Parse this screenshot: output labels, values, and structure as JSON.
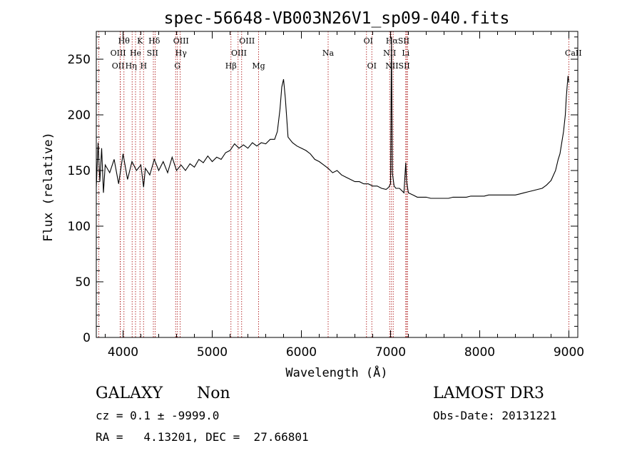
{
  "chart_data": {
    "type": "line",
    "title": "spec-56648-VB003N26V1_sp09-040.fits",
    "xlabel": "Wavelength (Å)",
    "ylabel": "Flux (relative)",
    "xlim": [
      3700,
      9100
    ],
    "ylim": [
      0,
      275
    ],
    "xticks": [
      4000,
      5000,
      6000,
      7000,
      8000,
      9000
    ],
    "yticks": [
      0,
      50,
      100,
      150,
      200,
      250
    ],
    "grid": false,
    "series": [
      {
        "name": "spectrum",
        "x": [
          3700,
          3720,
          3740,
          3760,
          3780,
          3800,
          3850,
          3900,
          3950,
          4000,
          4050,
          4100,
          4150,
          4200,
          4230,
          4250,
          4300,
          4350,
          4400,
          4450,
          4500,
          4550,
          4600,
          4650,
          4700,
          4750,
          4800,
          4850,
          4900,
          4950,
          5000,
          5050,
          5100,
          5150,
          5200,
          5250,
          5300,
          5350,
          5400,
          5450,
          5500,
          5550,
          5600,
          5650,
          5700,
          5730,
          5760,
          5780,
          5800,
          5820,
          5850,
          5900,
          5950,
          6000,
          6050,
          6100,
          6150,
          6200,
          6250,
          6300,
          6350,
          6400,
          6450,
          6500,
          6550,
          6600,
          6650,
          6700,
          6750,
          6800,
          6850,
          6900,
          6950,
          6980,
          7000,
          7010,
          7020,
          7040,
          7060,
          7100,
          7150,
          7170,
          7180,
          7200,
          7250,
          7300,
          7350,
          7400,
          7450,
          7500,
          7550,
          7600,
          7650,
          7700,
          7750,
          7800,
          7850,
          7900,
          7950,
          8000,
          8050,
          8100,
          8150,
          8200,
          8250,
          8300,
          8350,
          8400,
          8450,
          8500,
          8550,
          8600,
          8650,
          8700,
          8750,
          8800,
          8850,
          8880,
          8900,
          8920,
          8940,
          8960,
          8970,
          8980,
          8990,
          9000
        ],
        "y": [
          135,
          175,
          140,
          170,
          130,
          155,
          148,
          160,
          138,
          165,
          142,
          158,
          150,
          155,
          135,
          152,
          146,
          160,
          150,
          158,
          148,
          162,
          150,
          155,
          150,
          156,
          153,
          160,
          157,
          163,
          158,
          162,
          160,
          166,
          168,
          174,
          170,
          173,
          170,
          175,
          172,
          175,
          174,
          178,
          178,
          185,
          205,
          225,
          232,
          215,
          180,
          175,
          172,
          170,
          168,
          165,
          160,
          158,
          155,
          152,
          148,
          150,
          146,
          144,
          142,
          140,
          140,
          138,
          138,
          136,
          136,
          134,
          133,
          135,
          138,
          270,
          148,
          136,
          134,
          134,
          130,
          157,
          140,
          130,
          128,
          126,
          126,
          126,
          125,
          125,
          125,
          125,
          125,
          126,
          126,
          126,
          126,
          127,
          127,
          127,
          127,
          128,
          128,
          128,
          128,
          128,
          128,
          128,
          129,
          130,
          131,
          132,
          133,
          134,
          137,
          141,
          150,
          160,
          165,
          175,
          185,
          200,
          215,
          225,
          235,
          229
        ],
        "color": "#000000"
      }
    ],
    "lines": [
      {
        "name": "line-OII",
        "x": 3727,
        "label": "OII"
      },
      {
        "name": "line-OIII",
        "x": 3968,
        "label": "OIII"
      },
      {
        "name": "line-Hepsilon",
        "x": 3970,
        "label": "Hε"
      },
      {
        "name": "line-Htheta",
        "x": 4010,
        "label": "Hθ"
      },
      {
        "name": "line-Heta",
        "x": 4102,
        "label": "Hη"
      },
      {
        "name": "line-He",
        "x": 4140,
        "label": "He"
      },
      {
        "name": "line-K",
        "x": 4190,
        "label": "K"
      },
      {
        "name": "line-H",
        "x": 4230,
        "label": "H"
      },
      {
        "name": "line-Hdelta",
        "x": 4340,
        "label": "Hδ"
      },
      {
        "name": "line-SII-a",
        "x": 4360,
        "label": "SII"
      },
      {
        "name": "line-OIII-a",
        "x": 4590,
        "label": "OIII"
      },
      {
        "name": "line-Hgamma",
        "x": 4610,
        "label": "Hγ"
      },
      {
        "name": "line-G",
        "x": 4640,
        "label": "G"
      },
      {
        "name": "line-Hbeta",
        "x": 5210,
        "label": "Hβ"
      },
      {
        "name": "line-OIII-b",
        "x": 5290,
        "label": "OIII"
      },
      {
        "name": "line-OIII-c",
        "x": 5330,
        "label": "OIII"
      },
      {
        "name": "line-Mg",
        "x": 5520,
        "label": "Mg"
      },
      {
        "name": "line-Na",
        "x": 6300,
        "label": "Na"
      },
      {
        "name": "line-OI-a",
        "x": 6730,
        "label": "OI"
      },
      {
        "name": "line-OI-b",
        "x": 6790,
        "label": "OI"
      },
      {
        "name": "line-NII-a",
        "x": 6990,
        "label": "NII"
      },
      {
        "name": "line-Halpha",
        "x": 7010,
        "label": "Hα"
      },
      {
        "name": "line-NII-b",
        "x": 7030,
        "label": "NII"
      },
      {
        "name": "line-SII-b",
        "x": 7170,
        "label": "SII"
      },
      {
        "name": "line-Li",
        "x": 7180,
        "label": "Li"
      },
      {
        "name": "line-SII-c",
        "x": 7190,
        "label": "SII"
      },
      {
        "name": "line-CaII",
        "x": 9000,
        "label": "CaII"
      }
    ],
    "line_label_rows": [
      {
        "text": "Hθ",
        "x": 4010,
        "row": 0
      },
      {
        "text": "K",
        "x": 4190,
        "row": 0
      },
      {
        "text": "Hδ",
        "x": 4350,
        "row": 0
      },
      {
        "text": "OIII",
        "x": 4650,
        "row": 0
      },
      {
        "text": "OIII",
        "x": 5390,
        "row": 0
      },
      {
        "text": "OI",
        "x": 6750,
        "row": 0
      },
      {
        "text": "HαSII",
        "x": 7080,
        "row": 0
      },
      {
        "text": "OIII",
        "x": 3945,
        "row": 1
      },
      {
        "text": "He",
        "x": 4140,
        "row": 1
      },
      {
        "text": "SII",
        "x": 4330,
        "row": 1
      },
      {
        "text": "Hγ",
        "x": 4650,
        "row": 1
      },
      {
        "text": "OIII",
        "x": 5300,
        "row": 1
      },
      {
        "text": "Na",
        "x": 6300,
        "row": 1
      },
      {
        "text": "NII",
        "x": 6990,
        "row": 1
      },
      {
        "text": "Li",
        "x": 7170,
        "row": 1
      },
      {
        "text": "CaII",
        "x": 9050,
        "row": 1
      },
      {
        "text": "OII",
        "x": 3945,
        "row": 2
      },
      {
        "text": "Hη",
        "x": 4090,
        "row": 2
      },
      {
        "text": "H",
        "x": 4230,
        "row": 2
      },
      {
        "text": "G",
        "x": 4610,
        "row": 2
      },
      {
        "text": "Hβ",
        "x": 5210,
        "row": 2
      },
      {
        "text": "Mg",
        "x": 5520,
        "row": 2
      },
      {
        "text": "OI",
        "x": 6790,
        "row": 2
      },
      {
        "text": "NIISII",
        "x": 7080,
        "row": 2
      }
    ]
  },
  "info": {
    "object_class": "GALAXY",
    "subclass": "Non",
    "survey": "LAMOST DR3",
    "cz": "cz = 0.1 ± -9999.0",
    "obs_date": "Obs-Date: 20131221",
    "coords": "RA =   4.13201, DEC =  27.66801"
  },
  "colors": {
    "spectrum": "#000000",
    "line_marker": "#b22222",
    "axis": "#000000"
  }
}
